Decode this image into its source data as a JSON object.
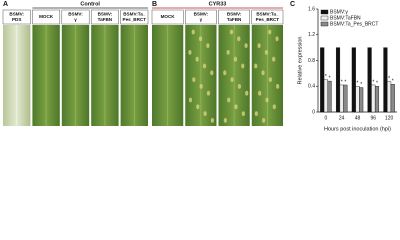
{
  "panel_a": {
    "label": "A",
    "heading": "Control",
    "leaves": [
      {
        "label": [
          "BSMV:",
          "PDS"
        ]
      },
      {
        "label": [
          "MOCK"
        ]
      },
      {
        "label": [
          "BSMV:",
          "γ"
        ]
      },
      {
        "label": [
          "BSMV:",
          "TaFBN"
        ]
      },
      {
        "label": [
          "BSMV:Ta_",
          "Pes_BRCT"
        ]
      }
    ]
  },
  "panel_b": {
    "label": "B",
    "heading": "CYR33",
    "leaves": [
      {
        "label": [
          "MOCK"
        ]
      },
      {
        "label": [
          "BSMV:",
          "γ"
        ]
      },
      {
        "label": [
          "BSMV:",
          "TaFBN"
        ]
      },
      {
        "label": [
          "BSMV:Ta_",
          "Pes_BRCT"
        ]
      }
    ]
  },
  "chart_data": {
    "type": "bar",
    "panel_label": "C",
    "x_label": "Hours post inoculation (hpi)",
    "y_label": "Relative expression",
    "categories": [
      "0",
      "24",
      "48",
      "96",
      "120"
    ],
    "series": [
      {
        "name": "BSMV:γ",
        "color": "#111111",
        "values": [
          1,
          1,
          1,
          1,
          1
        ]
      },
      {
        "name": "BSMV:TaFBN",
        "color": "#eeeeee",
        "values": [
          0.5,
          0.42,
          0.4,
          0.42,
          0.47
        ],
        "annotations": [
          "*",
          "*",
          "*",
          "*",
          "*"
        ]
      },
      {
        "name": "BSMV:Ta_Pes_BRCT",
        "color": "#8a8a8a",
        "values": [
          0.48,
          0.42,
          0.38,
          0.4,
          0.43
        ],
        "annotations": [
          "*",
          "*",
          "*",
          "*",
          "*"
        ]
      }
    ],
    "ylim": [
      0,
      1.6
    ],
    "yticks": [
      0,
      0.4,
      0.8,
      1.2,
      1.6
    ],
    "legend": "upper-left"
  }
}
